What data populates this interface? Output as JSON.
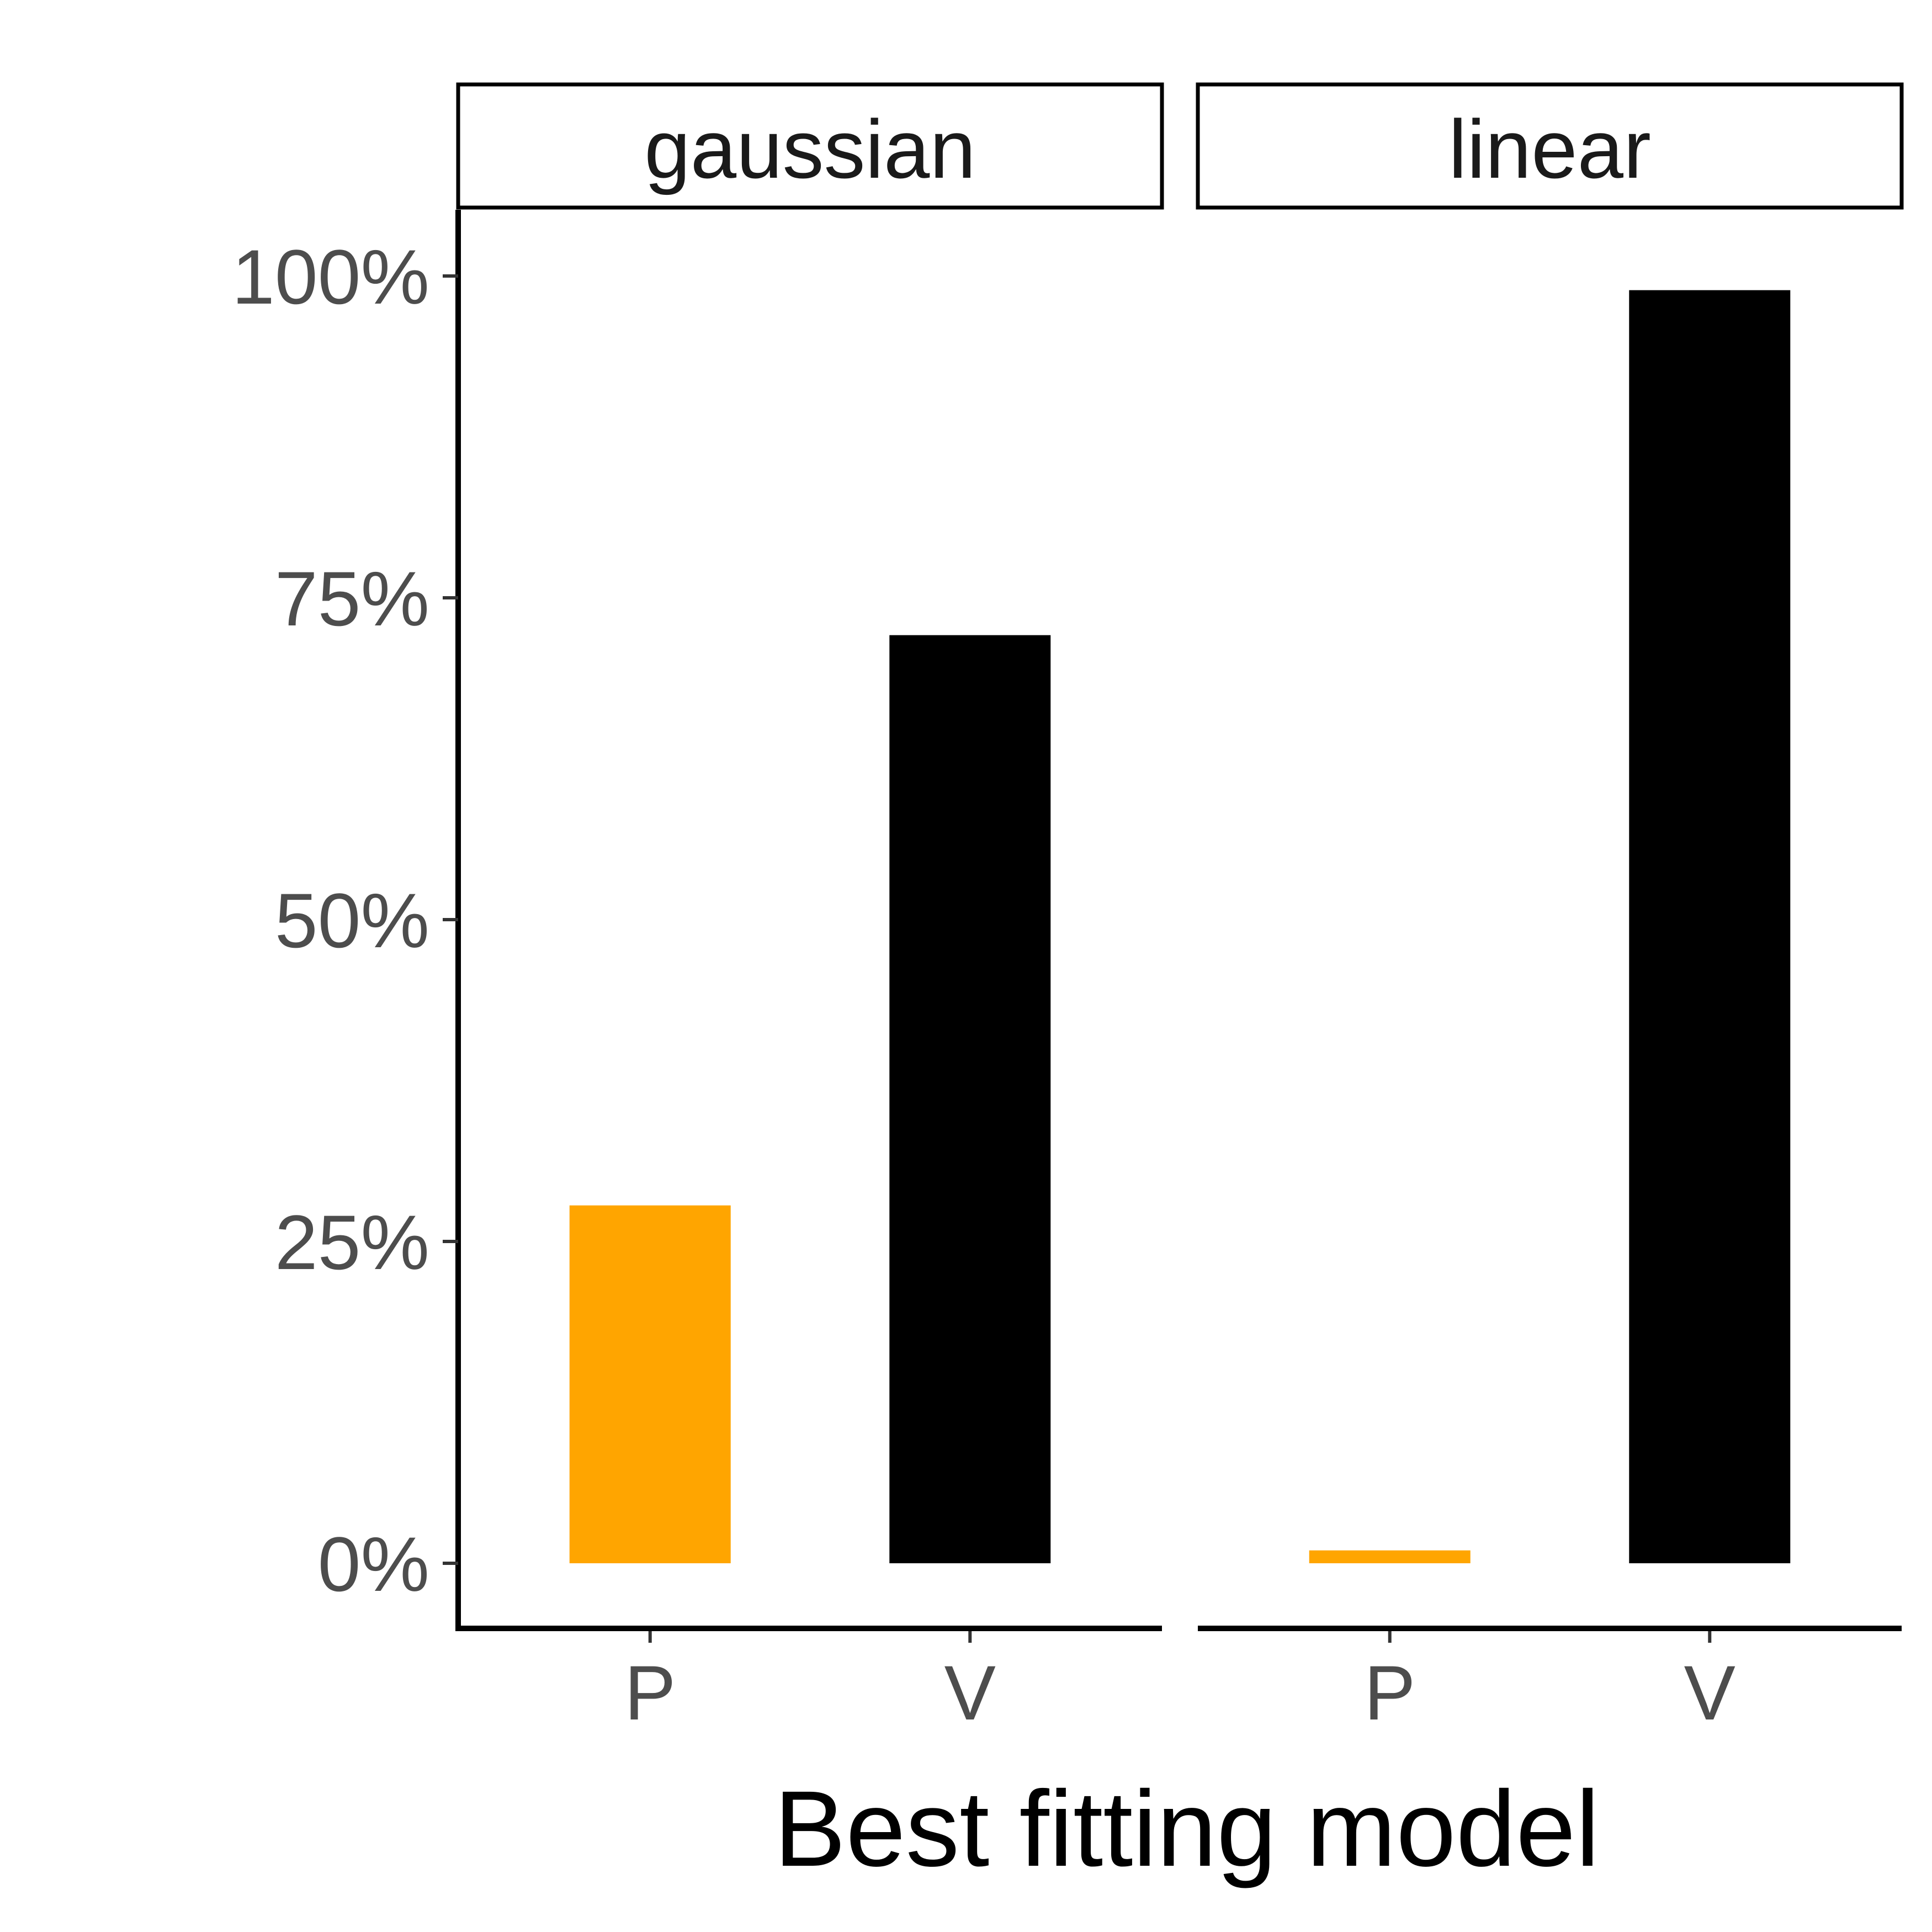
{
  "chart_data": {
    "type": "bar",
    "xlabel": "Best fitting model",
    "ylabel": "",
    "ylim": [
      0,
      1
    ],
    "y_ticks": [
      {
        "value": 0,
        "label": "0%"
      },
      {
        "value": 0.25,
        "label": "25%"
      },
      {
        "value": 0.5,
        "label": "50%"
      },
      {
        "value": 0.75,
        "label": "75%"
      },
      {
        "value": 1,
        "label": "100%"
      }
    ],
    "categories": [
      "P",
      "V"
    ],
    "colors": {
      "P": "#FFA500",
      "V": "#000000"
    },
    "facets": [
      {
        "name": "gaussian",
        "values": [
          0.278,
          0.721
        ]
      },
      {
        "name": "linear",
        "values": [
          0.01,
          0.989
        ]
      }
    ],
    "legend": "none",
    "grid": false
  }
}
